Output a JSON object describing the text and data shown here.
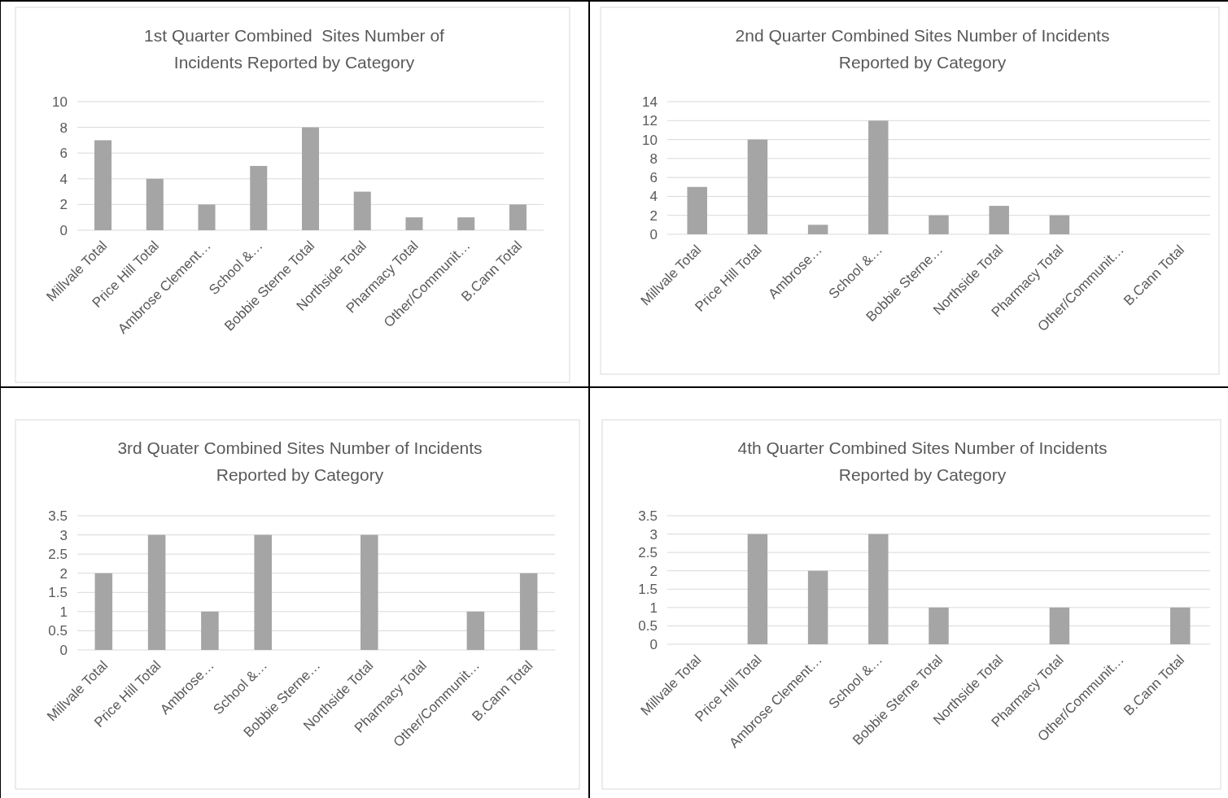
{
  "chart_data": [
    {
      "type": "bar",
      "title": "1st Quarter Combined  Sites Number of Incidents Reported by Category",
      "categories": [
        "Millvale Total",
        "Price Hill Total",
        "Ambrose Clement…",
        "School &…",
        "Bobbie Sterne Total",
        "Northside Total",
        "Pharmacy Total",
        "Other/Communit…",
        "B.Cann Total"
      ],
      "values": [
        7,
        4,
        2,
        5,
        8,
        3,
        1,
        1,
        2
      ],
      "color": "#a5a5a5",
      "ylim": [
        0,
        10
      ],
      "yticks": [
        0,
        2,
        4,
        6,
        8,
        10
      ],
      "grid": "y"
    },
    {
      "type": "bar",
      "title": "2nd Quarter Combined Sites Number of Incidents Reported by Category",
      "categories": [
        "Millvale Total",
        "Price Hill Total",
        "Ambrose…",
        "School &…",
        "Bobbie Sterne…",
        "Northside Total",
        "Pharmacy Total",
        "Other/Communit…",
        "B.Cann Total"
      ],
      "values": [
        5,
        10,
        1,
        12,
        2,
        3,
        2,
        0,
        0
      ],
      "color": "#a5a5a5",
      "ylim": [
        0,
        14
      ],
      "yticks": [
        0,
        2,
        4,
        6,
        8,
        10,
        12,
        14
      ],
      "grid": "y"
    },
    {
      "type": "bar",
      "title": "3rd Quater Combined Sites Number of Incidents Reported by Category",
      "categories": [
        "Millvale Total",
        "Price Hill Total",
        "Ambrose…",
        "School &…",
        "Bobbie Sterne…",
        "Northside Total",
        "Pharmacy Total",
        "Other/Communit…",
        "B.Cann Total"
      ],
      "values": [
        2,
        3,
        1,
        3,
        0,
        3,
        0,
        1,
        2
      ],
      "color": "#a5a5a5",
      "ylim": [
        0,
        3.5
      ],
      "yticks": [
        0,
        0.5,
        1,
        1.5,
        2,
        2.5,
        3,
        3.5
      ],
      "grid": "y"
    },
    {
      "type": "bar",
      "title": "4th Quarter Combined Sites Number of Incidents Reported by Category",
      "categories": [
        "Millvale Total",
        "Price Hill Total",
        "Ambrose Clement…",
        "School &…",
        "Bobbie Sterne Total",
        "Northside Total",
        "Pharmacy Total",
        "Other/Communit…",
        "B.Cann Total"
      ],
      "values": [
        0,
        3,
        2,
        3,
        1,
        0,
        1,
        0,
        1
      ],
      "color": "#a5a5a5",
      "ylim": [
        0,
        3.5
      ],
      "yticks": [
        0,
        0.5,
        1,
        1.5,
        2,
        2.5,
        3,
        3.5
      ],
      "grid": "y"
    }
  ]
}
